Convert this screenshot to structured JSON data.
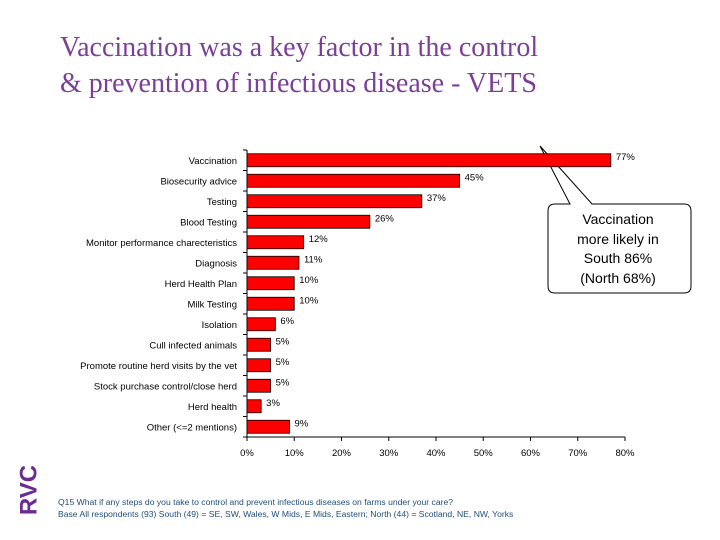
{
  "title_lines": [
    "Vaccination was a key factor in the control",
    "& prevention of infectious disease - VETS"
  ],
  "callout_lines": [
    "Vaccination",
    "more likely in",
    "South 86%",
    "(North 68%)"
  ],
  "logo_text": "RVC",
  "footnote_lines": [
    "Q15 What if any steps do you take to control and prevent infectious diseases on farms under your care?",
    "Base All respondents (93) South (49) = SE, SW, Wales, W Mids, E Mids, Eastern; North (44) = Scotland, NE, NW, Yorks"
  ],
  "colors": {
    "bar": "#ff0000",
    "title": "#7b3f98",
    "logo": "#6b2c91",
    "footnote": "#1f4e79"
  },
  "chart_data": {
    "type": "bar",
    "orientation": "horizontal",
    "categories": [
      "Vaccination",
      "Biosecurity advice",
      "Testing",
      "Blood Testing",
      "Monitor performance charecteristics",
      "Diagnosis",
      "Herd Health Plan",
      "Milk Testing",
      "Isolation",
      "Cull infected animals",
      "Promote routine herd visits by the vet",
      "Stock purchase control/close herd",
      "Herd health",
      "Other (<=2 mentions)"
    ],
    "values": [
      77,
      45,
      37,
      26,
      12,
      11,
      10,
      10,
      6,
      5,
      5,
      5,
      3,
      9
    ],
    "value_labels": [
      "77%",
      "45%",
      "37%",
      "26%",
      "12%",
      "11%",
      "10%",
      "10%",
      "6%",
      "5%",
      "5%",
      "5%",
      "3%",
      "9%"
    ],
    "xlim": [
      0,
      80
    ],
    "xticks": [
      "0%",
      "10%",
      "20%",
      "30%",
      "40%",
      "50%",
      "60%",
      "70%",
      "80%"
    ],
    "grid": false,
    "legend": "none"
  }
}
